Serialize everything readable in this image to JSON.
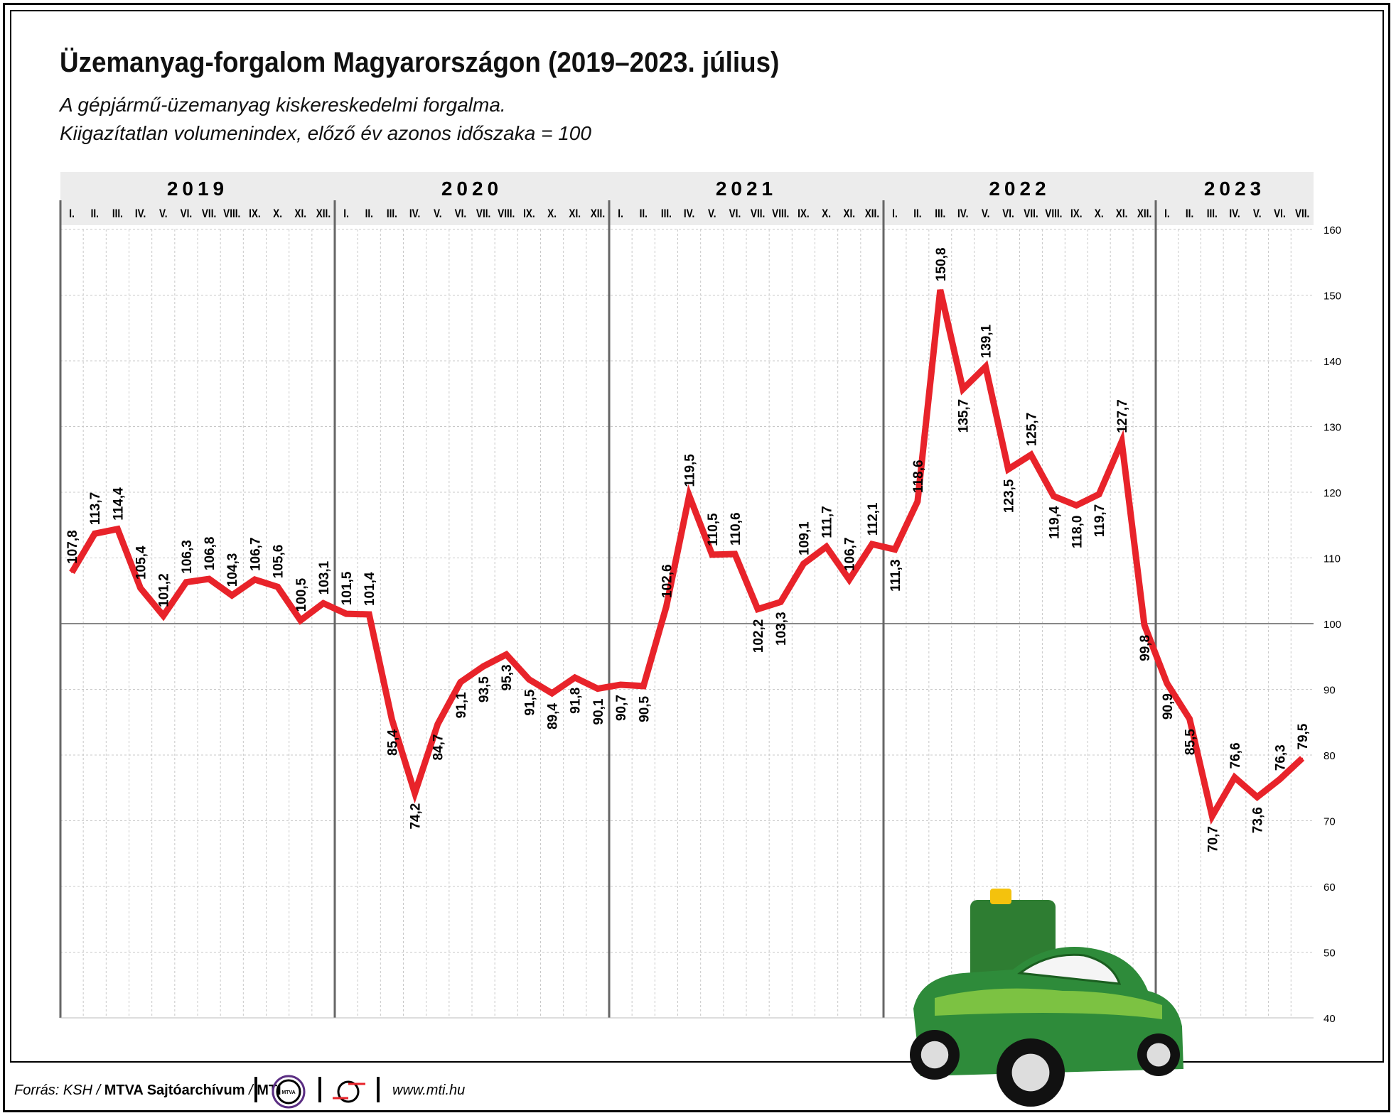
{
  "footer": {
    "source_prefix": "Forrás: KSH / ",
    "source_org": "MTVA Sajtóarchívum",
    "source_sep": " / ",
    "source_mti": "MTI",
    "logo_mtva": "MTVA",
    "website": "www.mti.hu"
  },
  "chart_data": {
    "type": "line",
    "title": "Üzemanyag-forgalom Magyarországon (2019–2023. július)",
    "subtitle": [
      "A gépjármű-üzemanyag kiskereskedelmi forgalma.",
      "Kiigazítatlan volumenindex, előző év azonos időszaka = 100"
    ],
    "years": [
      {
        "label": "2019",
        "months": [
          "I.",
          "II.",
          "III.",
          "IV.",
          "V.",
          "VI.",
          "VII.",
          "VIII.",
          "IX.",
          "X.",
          "XI.",
          "XII."
        ],
        "values": [
          107.8,
          113.7,
          114.4,
          105.4,
          101.2,
          106.3,
          106.8,
          104.3,
          106.7,
          105.6,
          100.5,
          103.1
        ]
      },
      {
        "label": "2020",
        "months": [
          "I.",
          "II.",
          "III.",
          "IV.",
          "V.",
          "VI.",
          "VII.",
          "VIII.",
          "IX.",
          "X.",
          "XI.",
          "XII."
        ],
        "values": [
          101.5,
          101.4,
          85.4,
          74.2,
          84.7,
          91.1,
          93.5,
          95.3,
          91.5,
          89.4,
          91.8,
          90.1
        ]
      },
      {
        "label": "2021",
        "months": [
          "I.",
          "II.",
          "III.",
          "IV.",
          "V.",
          "VI.",
          "VII.",
          "VIII.",
          "IX.",
          "X.",
          "XI.",
          "XII."
        ],
        "values": [
          90.7,
          90.5,
          102.6,
          119.5,
          110.5,
          110.6,
          102.2,
          103.3,
          109.1,
          111.7,
          106.7,
          112.1
        ]
      },
      {
        "label": "2022",
        "months": [
          "I.",
          "II.",
          "III.",
          "IV.",
          "V.",
          "VI.",
          "VII.",
          "VIII.",
          "IX.",
          "X.",
          "XI.",
          "XII."
        ],
        "values": [
          111.3,
          118.6,
          150.8,
          135.7,
          139.1,
          123.5,
          125.7,
          119.4,
          118.0,
          119.7,
          127.7,
          99.8
        ]
      },
      {
        "label": "2023",
        "months": [
          "I.",
          "II.",
          "III.",
          "IV.",
          "V.",
          "VI.",
          "VII."
        ],
        "values": [
          90.9,
          85.5,
          70.7,
          76.6,
          73.6,
          76.3,
          79.5
        ]
      }
    ],
    "ylim": [
      40,
      160
    ],
    "yticks": [
      40,
      50,
      60,
      70,
      80,
      90,
      100,
      110,
      120,
      130,
      140,
      150,
      160
    ],
    "reference_line": 100,
    "decimal_separator": ",",
    "grid": true,
    "yaxis_position": "right",
    "line_color": "#e8232a"
  }
}
